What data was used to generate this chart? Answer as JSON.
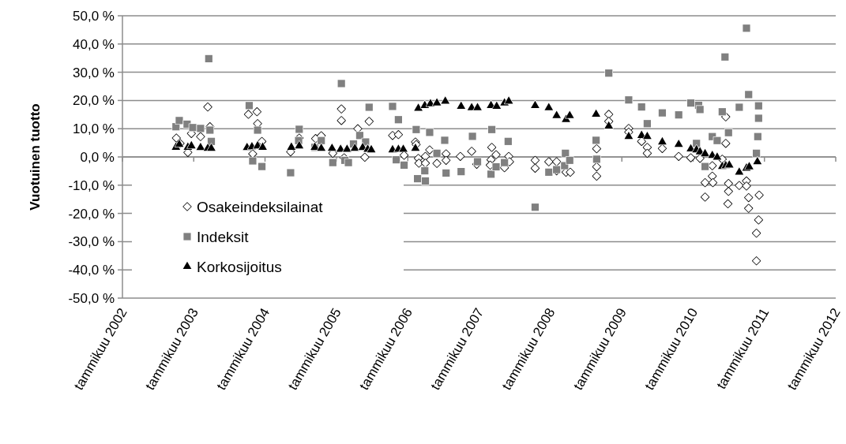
{
  "chart_data": {
    "type": "scatter",
    "ylabel": "Vuotuinen tuotto",
    "xlim": [
      "2002-01",
      "2012-01"
    ],
    "xticks": [
      {
        "value": "2002-01",
        "label": "tammikuu 2002"
      },
      {
        "value": "2003-01",
        "label": "tammikuu 2003"
      },
      {
        "value": "2004-01",
        "label": "tammikuu 2004"
      },
      {
        "value": "2005-01",
        "label": "tammikuu 2005"
      },
      {
        "value": "2006-01",
        "label": "tammikuu 2006"
      },
      {
        "value": "2007-01",
        "label": "tammikuu 2007"
      },
      {
        "value": "2008-01",
        "label": "tammikuu 2008"
      },
      {
        "value": "2009-01",
        "label": "tammikuu 2009"
      },
      {
        "value": "2010-01",
        "label": "tammikuu 2010"
      },
      {
        "value": "2011-01",
        "label": "tammikuu 2011"
      },
      {
        "value": "2012-01",
        "label": "tammikuu 2012"
      }
    ],
    "ylim": [
      -50,
      50
    ],
    "yticks": [
      {
        "value": 50,
        "label": "50,0 %"
      },
      {
        "value": 40,
        "label": "40,0 %"
      },
      {
        "value": 30,
        "label": "30,0 %"
      },
      {
        "value": 20,
        "label": "20,0 %"
      },
      {
        "value": 10,
        "label": "10,0 %"
      },
      {
        "value": 0,
        "label": "0,0 %"
      },
      {
        "value": -10,
        "label": "-10,0 %"
      },
      {
        "value": -20,
        "label": "-20,0 %"
      },
      {
        "value": -30,
        "label": "-30,0 %"
      },
      {
        "value": -40,
        "label": "-40,0 %"
      },
      {
        "value": -50,
        "label": "-50,0 %"
      }
    ],
    "grid": "y",
    "legend": "bottom left",
    "series": [
      {
        "name": "Osakeindeksilainat",
        "color": "#000000",
        "marker": "diamond",
        "x": [
          "2002-10-04",
          "2002-10-23",
          "2002-12-02",
          "2002-12-20",
          "2003-02-05",
          "2003-03-14",
          "2003-03-25",
          "2003-10-08",
          "2003-11-21",
          "2003-11-24",
          "2003-12-16",
          "2003-10-30",
          "2004-05-11",
          "2004-06-24",
          "2004-09-16",
          "2004-10-15",
          "2004-12-13",
          "2005-01-26",
          "2005-01-26",
          "2005-02-09",
          "2005-04-20",
          "2005-05-26",
          "2005-06-17",
          "2005-10-15",
          "2005-11-14",
          "2005-12-13",
          "2006-02-09",
          "2006-02-13",
          "2006-02-24",
          "2006-02-27",
          "2006-04-01",
          "2006-04-01",
          "2006-04-23",
          "2006-05-30",
          "2006-07-16",
          "2006-07-16",
          "2006-09-27",
          "2006-11-24",
          "2006-12-20",
          "2007-03-07",
          "2007-03-29",
          "2007-03-03",
          "2007-02-27",
          "2007-05-11",
          "2007-06-02",
          "2007-06-06",
          "2007-10-15",
          "2007-10-15",
          "2007-12-24",
          "2008-02-02",
          "2008-02-02",
          "2008-03-21",
          "2008-04-12",
          "2008-08-25",
          "2008-08-25",
          "2008-08-25",
          "2008-10-26",
          "2008-10-26",
          "2009-02-05",
          "2009-02-05",
          "2009-04-12",
          "2009-05-11",
          "2009-05-11",
          "2009-07-27",
          "2009-10-19",
          "2009-12-20",
          "2010-02-05",
          "2010-03-03",
          "2010-03-03",
          "2010-04-09",
          "2010-04-09",
          "2010-04-12",
          "2010-05-30",
          "2010-06-17",
          "2010-06-17",
          "2010-07-01",
          "2010-07-01",
          "2010-06-28",
          "2010-08-25",
          "2010-10-01",
          "2010-10-01",
          "2010-10-12",
          "2010-10-12",
          "2010-12-05",
          "2010-12-02",
          "2010-11-21",
          "2010-11-21"
        ],
        "values": [
          6.7,
          4.8,
          1.6,
          8.3,
          7.2,
          17.7,
          10.7,
          15.1,
          16.0,
          11.8,
          5.5,
          1.1,
          1.8,
          6.7,
          6.5,
          7.5,
          1.3,
          17.0,
          12.9,
          -0.3,
          10.0,
          -0.1,
          12.6,
          7.6,
          7.9,
          0.6,
          5.3,
          4.4,
          -0.5,
          -2.2,
          0.2,
          -2.2,
          2.5,
          -2.3,
          1.1,
          -1.2,
          0.2,
          2.0,
          -2.6,
          3.4,
          0.8,
          -1.0,
          -2.9,
          -3.8,
          0.2,
          -1.7,
          -1.2,
          -4.0,
          -1.7,
          -1.7,
          -4.9,
          -5.4,
          -5.4,
          2.9,
          -3.5,
          -6.8,
          15.1,
          12.6,
          10.1,
          8.8,
          5.5,
          3.4,
          1.3,
          3.0,
          0.2,
          -0.3,
          -0.5,
          -9.1,
          -14.2,
          -3.1,
          -6.8,
          -9.1,
          -0.8,
          14.2,
          4.8,
          -9.4,
          -12.2,
          -16.6,
          -10.1,
          -8.5,
          -10.3,
          -14.4,
          -18.2,
          -13.5,
          -22.3,
          -27.0,
          -36.8
        ]
      },
      {
        "name": "Indeksit",
        "color": "#808080",
        "marker": "square",
        "x": [
          "2002-10-02",
          "2002-10-19",
          "2002-11-28",
          "2002-12-27",
          "2003-02-05",
          "2003-03-19",
          "2003-03-25",
          "2003-04-01",
          "2003-10-12",
          "2003-11-24",
          "2003-10-30",
          "2003-12-16",
          "2004-05-11",
          "2004-06-24",
          "2004-06-21",
          "2004-09-12",
          "2004-10-15",
          "2004-12-13",
          "2005-01-26",
          "2005-02-13",
          "2005-03-03",
          "2005-03-29",
          "2005-04-30",
          "2005-05-30",
          "2005-06-17",
          "2005-10-15",
          "2005-11-14",
          "2005-11-03",
          "2005-12-13",
          "2006-02-13",
          "2006-02-20",
          "2006-04-01",
          "2006-03-29",
          "2006-04-23",
          "2006-05-30",
          "2006-07-09",
          "2006-07-16",
          "2006-10-01",
          "2006-11-28",
          "2006-12-24",
          "2007-03-03",
          "2007-03-07",
          "2007-03-29",
          "2007-05-11",
          "2007-05-30",
          "2007-10-15",
          "2007-12-24",
          "2008-02-02",
          "2008-03-14",
          "2008-03-18",
          "2008-04-09",
          "2008-08-22",
          "2008-08-25",
          "2008-10-26",
          "2009-02-05",
          "2009-04-12",
          "2009-05-11",
          "2009-07-27",
          "2009-10-19",
          "2009-12-20",
          "2010-01-29",
          "2010-02-05",
          "2010-01-18",
          "2010-03-03",
          "2010-04-09",
          "2010-05-04",
          "2010-05-30",
          "2010-06-13",
          "2010-07-01",
          "2010-08-25",
          "2010-10-01",
          "2010-10-12",
          "2010-12-02",
          "2010-12-02",
          "2010-11-28",
          "2010-11-21"
        ],
        "values": [
          10.7,
          12.9,
          11.6,
          10.4,
          10.1,
          34.8,
          9.5,
          5.5,
          18.2,
          9.5,
          -1.4,
          -3.4,
          -5.6,
          9.8,
          5.8,
          3.4,
          5.8,
          -2.0,
          26.0,
          -1.2,
          -2.0,
          4.6,
          7.6,
          5.3,
          17.6,
          17.9,
          13.2,
          -1.0,
          -2.9,
          9.7,
          -7.7,
          -8.5,
          -4.9,
          8.7,
          1.3,
          5.9,
          -5.7,
          -5.2,
          7.3,
          -1.7,
          -6.1,
          9.7,
          -3.5,
          -2.0,
          5.5,
          -17.8,
          -5.4,
          -4.5,
          -3.1,
          1.3,
          -1.2,
          5.9,
          -0.8,
          29.7,
          20.2,
          17.7,
          11.8,
          15.6,
          14.9,
          19.1,
          18.3,
          16.8,
          4.8,
          -3.4,
          7.2,
          5.8,
          16.0,
          35.4,
          8.6,
          17.6,
          45.6,
          22.1,
          18.1,
          13.7,
          7.2,
          1.3
        ]
      },
      {
        "name": "Korkosijoitus",
        "color": "#000000",
        "marker": "triangle",
        "x": [
          "2002-10-02",
          "2002-10-19",
          "2002-12-02",
          "2002-12-20",
          "2003-02-05",
          "2003-03-14",
          "2003-04-01",
          "2003-10-01",
          "2003-10-26",
          "2003-11-24",
          "2003-12-20",
          "2004-05-15",
          "2004-06-24",
          "2004-09-12",
          "2004-10-15",
          "2004-12-09",
          "2005-01-22",
          "2005-02-24",
          "2005-04-05",
          "2005-05-15",
          "2005-06-10",
          "2005-06-28",
          "2005-10-15",
          "2005-11-14",
          "2005-12-09",
          "2006-02-09",
          "2006-02-24",
          "2006-03-29",
          "2006-04-27",
          "2006-05-30",
          "2006-07-12",
          "2006-10-01",
          "2006-11-24",
          "2006-12-24",
          "2007-03-03",
          "2007-04-01",
          "2007-05-11",
          "2007-06-02",
          "2007-10-15",
          "2007-12-24",
          "2008-02-02",
          "2008-03-21",
          "2008-04-09",
          "2008-08-22",
          "2008-10-26",
          "2009-02-05",
          "2009-04-12",
          "2009-05-11",
          "2009-07-27",
          "2009-10-19",
          "2009-12-20",
          "2010-01-18",
          "2010-02-05",
          "2010-03-03",
          "2010-04-09",
          "2010-05-04",
          "2010-05-30",
          "2010-06-17",
          "2010-07-05",
          "2010-08-25",
          "2010-10-01",
          "2010-10-15",
          "2010-11-26"
        ],
        "values": [
          3.4,
          4.4,
          3.4,
          3.9,
          3.3,
          3.0,
          3.0,
          3.3,
          3.6,
          3.9,
          3.4,
          3.4,
          3.9,
          3.4,
          3.0,
          3.0,
          2.7,
          2.7,
          3.0,
          3.3,
          2.7,
          2.5,
          2.5,
          2.7,
          2.7,
          3.0,
          17.2,
          18.2,
          18.8,
          19.1,
          19.7,
          17.9,
          17.4,
          17.4,
          18.2,
          17.9,
          19.1,
          19.7,
          18.2,
          17.4,
          14.6,
          13.2,
          14.6,
          15.1,
          10.9,
          7.2,
          7.6,
          7.2,
          5.3,
          4.4,
          2.8,
          2.5,
          1.8,
          1.1,
          0.5,
          -0.1,
          -3.4,
          -3.1,
          -2.9,
          -5.4,
          -4.0,
          -3.5,
          -1.7
        ]
      }
    ]
  }
}
